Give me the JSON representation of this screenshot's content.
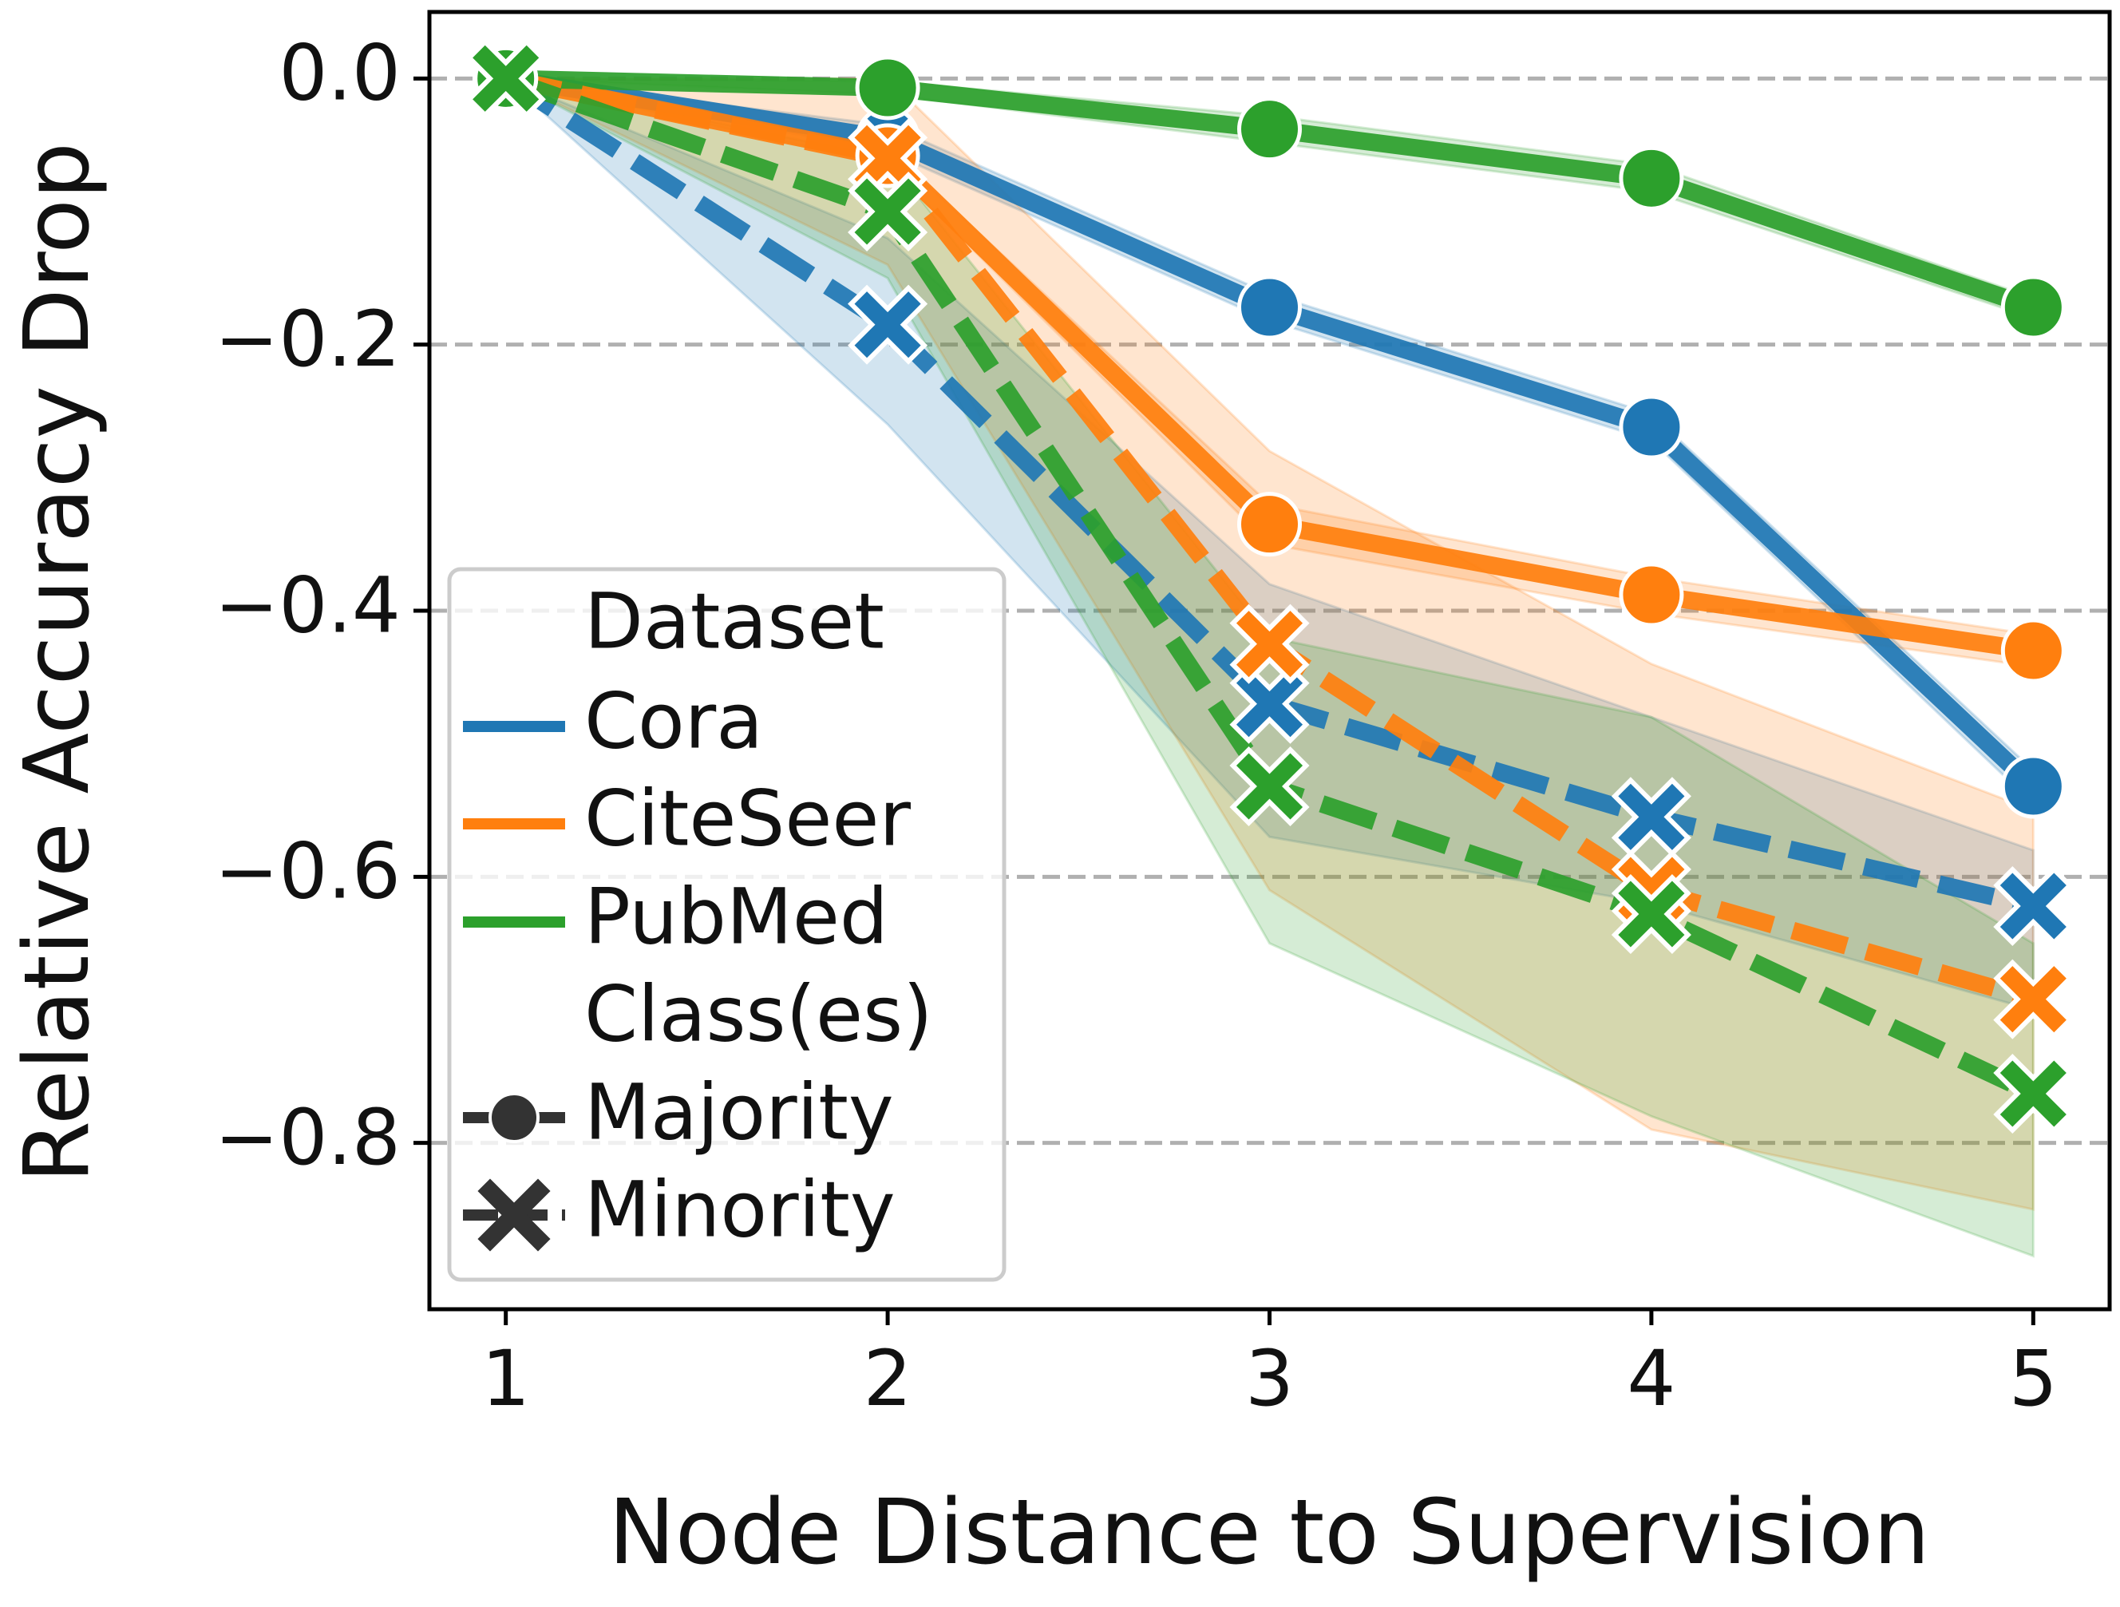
{
  "chart_data": {
    "type": "line",
    "title": "",
    "xlabel": "Node Distance to Supervision",
    "ylabel": "Relative Accuracy Drop",
    "x": [
      1,
      2,
      3,
      4,
      5
    ],
    "xlim": [
      0.8,
      5.2
    ],
    "ylim": [
      -0.925,
      0.05
    ],
    "xticks": [
      "1",
      "2",
      "3",
      "4",
      "5"
    ],
    "yticks": [
      {
        "value": 0.0,
        "label": "0.0"
      },
      {
        "value": -0.2,
        "label": "−0.2"
      },
      {
        "value": -0.4,
        "label": "−0.4"
      },
      {
        "value": -0.6,
        "label": "−0.6"
      },
      {
        "value": -0.8,
        "label": "−0.8"
      }
    ],
    "grid": "horizontal dashed",
    "legend_position": "lower-left",
    "legend": {
      "dataset_title": "Dataset",
      "class_title": "Class(es)",
      "datasets": [
        {
          "label": "Cora",
          "color": "#1f77b4"
        },
        {
          "label": "CiteSeer",
          "color": "#ff7f0e"
        },
        {
          "label": "PubMed",
          "color": "#2ca02c"
        }
      ],
      "classes": [
        {
          "label": "Majority",
          "marker": "circle",
          "line": "solid"
        },
        {
          "label": "Minority",
          "marker": "x",
          "line": "dashed"
        }
      ]
    },
    "series": [
      {
        "dataset": "Cora",
        "class": "Majority",
        "color": "#1f77b4",
        "values": [
          0.0,
          -0.045,
          -0.172,
          -0.262,
          -0.532
        ],
        "lower": [
          0.0,
          -0.055,
          -0.182,
          -0.272,
          -0.545
        ],
        "upper": [
          0.0,
          -0.035,
          -0.162,
          -0.252,
          -0.52
        ]
      },
      {
        "dataset": "CiteSeer",
        "class": "Majority",
        "color": "#ff7f0e",
        "values": [
          0.0,
          -0.058,
          -0.335,
          -0.388,
          -0.43
        ],
        "lower": [
          0.0,
          -0.065,
          -0.35,
          -0.402,
          -0.442
        ],
        "upper": [
          0.0,
          -0.052,
          -0.32,
          -0.375,
          -0.418
        ]
      },
      {
        "dataset": "PubMed",
        "class": "Majority",
        "color": "#2ca02c",
        "values": [
          0.0,
          -0.007,
          -0.038,
          -0.075,
          -0.172
        ],
        "lower": [
          0.0,
          -0.012,
          -0.048,
          -0.085,
          -0.18
        ],
        "upper": [
          0.0,
          -0.002,
          -0.028,
          -0.065,
          -0.165
        ]
      },
      {
        "dataset": "Cora",
        "class": "Minority",
        "color": "#1f77b4",
        "values": [
          0.0,
          -0.185,
          -0.47,
          -0.555,
          -0.622
        ],
        "lower": [
          0.0,
          -0.26,
          -0.57,
          -0.62,
          -0.7
        ],
        "upper": [
          0.0,
          -0.12,
          -0.38,
          -0.48,
          -0.58
        ]
      },
      {
        "dataset": "CiteSeer",
        "class": "Minority",
        "color": "#ff7f0e",
        "values": [
          0.0,
          -0.06,
          -0.425,
          -0.61,
          -0.692
        ],
        "lower": [
          0.0,
          -0.14,
          -0.61,
          -0.79,
          -0.85
        ],
        "upper": [
          0.0,
          0.0,
          -0.28,
          -0.44,
          -0.55
        ]
      },
      {
        "dataset": "PubMed",
        "class": "Minority",
        "color": "#2ca02c",
        "values": [
          0.0,
          -0.1,
          -0.532,
          -0.628,
          -0.763
        ],
        "lower": [
          0.0,
          -0.15,
          -0.65,
          -0.78,
          -0.885
        ],
        "upper": [
          0.0,
          -0.06,
          -0.42,
          -0.48,
          -0.65
        ]
      }
    ]
  }
}
